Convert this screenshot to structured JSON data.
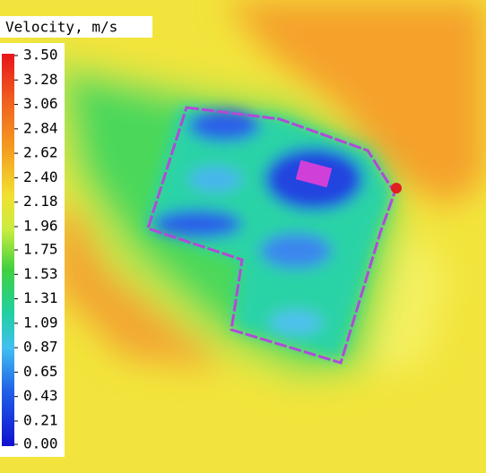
{
  "legend": {
    "title": "Velocity, m/s",
    "ticks": [
      {
        "value": 3.5,
        "label": "3.50"
      },
      {
        "value": 3.28,
        "label": "3.28"
      },
      {
        "value": 3.06,
        "label": "3.06"
      },
      {
        "value": 2.84,
        "label": "2.84"
      },
      {
        "value": 2.62,
        "label": "2.62"
      },
      {
        "value": 2.4,
        "label": "2.40"
      },
      {
        "value": 2.18,
        "label": "2.18"
      },
      {
        "value": 1.96,
        "label": "1.96"
      },
      {
        "value": 1.75,
        "label": "1.75"
      },
      {
        "value": 1.53,
        "label": "1.53"
      },
      {
        "value": 1.31,
        "label": "1.31"
      },
      {
        "value": 1.09,
        "label": "1.09"
      },
      {
        "value": 0.87,
        "label": "0.87"
      },
      {
        "value": 0.65,
        "label": "0.65"
      },
      {
        "value": 0.43,
        "label": "0.43"
      },
      {
        "value": 0.21,
        "label": "0.21"
      },
      {
        "value": 0,
        "label": "0.00"
      }
    ]
  }
}
